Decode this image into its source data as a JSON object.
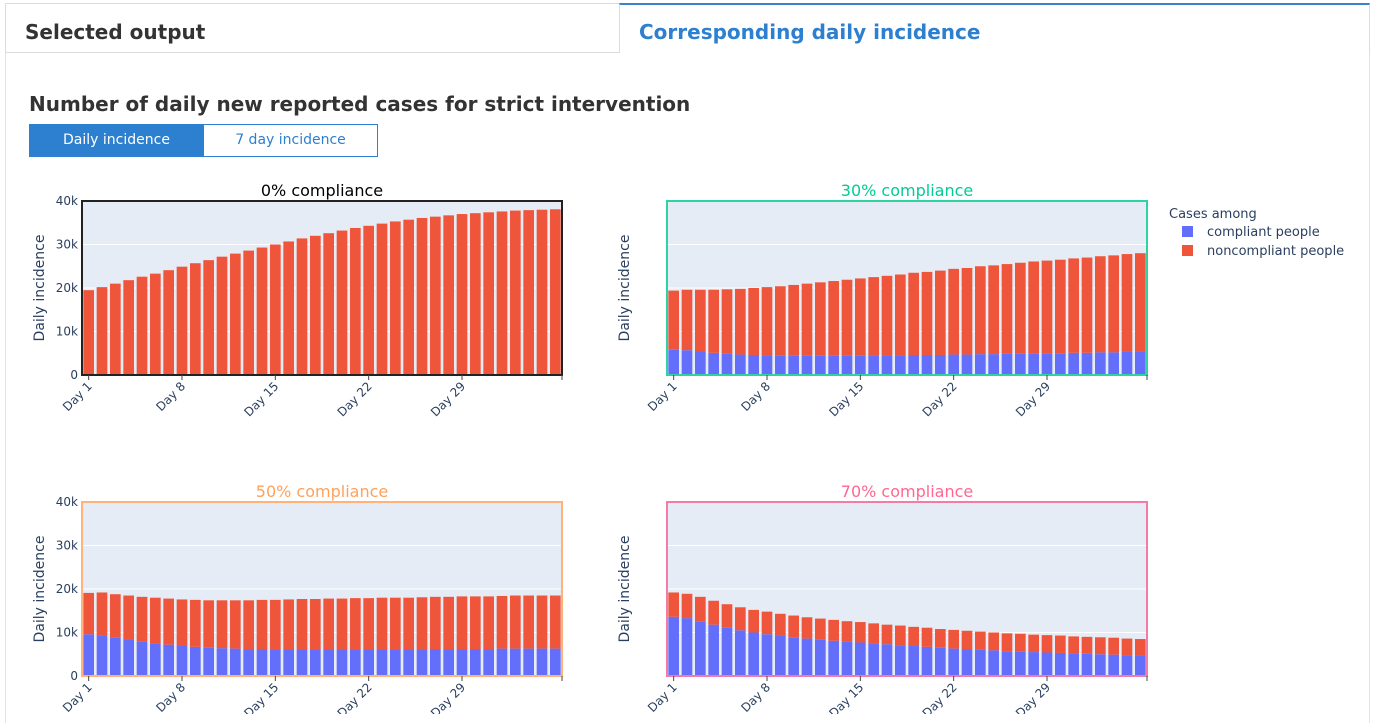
{
  "tabs": {
    "selected_output": "Selected output",
    "daily_incidence": "Corresponding daily incidence"
  },
  "heading": "Number of daily new reported cases for strict intervention",
  "toggle": {
    "daily": "Daily incidence",
    "seven_day": "7 day incidence"
  },
  "legend": {
    "title": "Cases among",
    "compliant": "compliant people",
    "noncompliant": "noncompliant people",
    "compliant_color": "#636efa",
    "noncompliant_color": "#ef553b"
  },
  "chart_data": [
    {
      "type": "bar",
      "stacked": true,
      "title": "0% compliance",
      "title_color": "#000000",
      "frame_color": "#222222",
      "ylabel": "Daily incidence",
      "ylim": [
        0,
        40000
      ],
      "yticks": [
        "0",
        "10k",
        "20k",
        "30k",
        "40k"
      ],
      "xticks": [
        "Day 1",
        "Day 8",
        "Day 15",
        "Day 22",
        "Day 29"
      ],
      "series": [
        {
          "name": "compliant people",
          "values": [
            0,
            0,
            0,
            0,
            0,
            0,
            0,
            0,
            0,
            0,
            0,
            0,
            0,
            0,
            0,
            0,
            0,
            0,
            0,
            0,
            0,
            0,
            0,
            0,
            0,
            0,
            0,
            0,
            0,
            0,
            0,
            0,
            0,
            0,
            0,
            0
          ]
        },
        {
          "name": "noncompliant people",
          "values": [
            19500,
            20200,
            21000,
            21800,
            22600,
            23300,
            24100,
            24900,
            25700,
            26400,
            27200,
            27900,
            28600,
            29300,
            30000,
            30700,
            31400,
            32000,
            32600,
            33200,
            33800,
            34300,
            34800,
            35300,
            35700,
            36100,
            36400,
            36700,
            37000,
            37200,
            37400,
            37600,
            37800,
            37900,
            38000,
            38100
          ]
        }
      ]
    },
    {
      "type": "bar",
      "stacked": true,
      "title": "30% compliance",
      "title_color": "#00cc96",
      "frame_color": "#2ed3a4",
      "ylabel": "Daily incidence",
      "ylim": [
        0,
        40000
      ],
      "yticks": [],
      "xticks": [
        "Day 1",
        "Day 8",
        "Day 15",
        "Day 22",
        "Day 29"
      ],
      "series": [
        {
          "name": "compliant people",
          "values": [
            5800,
            5700,
            5400,
            5100,
            4900,
            4700,
            4600,
            4500,
            4400,
            4400,
            4400,
            4400,
            4400,
            4400,
            4400,
            4500,
            4500,
            4500,
            4600,
            4600,
            4600,
            4700,
            4700,
            4800,
            4800,
            4900,
            4900,
            5000,
            5000,
            5000,
            5100,
            5100,
            5200,
            5200,
            5300,
            5300
          ]
        },
        {
          "name": "noncompliant people",
          "values": [
            13600,
            13900,
            14200,
            14500,
            14800,
            15100,
            15400,
            15700,
            16000,
            16300,
            16600,
            16900,
            17200,
            17500,
            17800,
            18000,
            18300,
            18600,
            18900,
            19100,
            19400,
            19700,
            19900,
            20200,
            20400,
            20600,
            20900,
            21100,
            21300,
            21500,
            21700,
            21900,
            22100,
            22300,
            22500,
            22700
          ]
        }
      ]
    },
    {
      "type": "bar",
      "stacked": true,
      "title": "50% compliance",
      "title_color": "#ffa15a",
      "frame_color": "#ffb27a",
      "ylabel": "Daily incidence",
      "ylim": [
        0,
        40000
      ],
      "yticks": [
        "0",
        "10k",
        "20k",
        "30k",
        "40k"
      ],
      "xticks": [
        "Day 1",
        "Day 8",
        "Day 15",
        "Day 22",
        "Day 29"
      ],
      "series": [
        {
          "name": "compliant people",
          "values": [
            9600,
            9400,
            8900,
            8400,
            7900,
            7500,
            7200,
            6900,
            6700,
            6500,
            6400,
            6300,
            6200,
            6200,
            6100,
            6100,
            6100,
            6100,
            6100,
            6100,
            6100,
            6100,
            6100,
            6100,
            6100,
            6100,
            6200,
            6200,
            6200,
            6200,
            6200,
            6300,
            6300,
            6300,
            6300,
            6300
          ]
        },
        {
          "name": "noncompliant people",
          "values": [
            9500,
            9800,
            9900,
            10100,
            10300,
            10500,
            10600,
            10700,
            10800,
            10900,
            11000,
            11100,
            11200,
            11300,
            11400,
            11500,
            11600,
            11600,
            11700,
            11700,
            11800,
            11800,
            11900,
            11900,
            11900,
            12000,
            12000,
            12000,
            12100,
            12100,
            12100,
            12100,
            12200,
            12200,
            12200,
            12200
          ]
        }
      ]
    },
    {
      "type": "bar",
      "stacked": true,
      "title": "70% compliance",
      "title_color": "#ff6692",
      "frame_color": "#f47ba6",
      "ylabel": "Daily incidence",
      "ylim": [
        0,
        40000
      ],
      "yticks": [],
      "xticks": [
        "Day 1",
        "Day 8",
        "Day 15",
        "Day 22",
        "Day 29"
      ],
      "series": [
        {
          "name": "compliant people",
          "values": [
            13600,
            13300,
            12600,
            11800,
            11100,
            10500,
            10000,
            9600,
            9200,
            8900,
            8600,
            8300,
            8100,
            7900,
            7700,
            7500,
            7300,
            7100,
            6900,
            6700,
            6500,
            6300,
            6200,
            6000,
            5900,
            5700,
            5600,
            5500,
            5400,
            5300,
            5200,
            5100,
            5000,
            4900,
            4800,
            4700
          ]
        },
        {
          "name": "noncompliant people",
          "values": [
            5600,
            5600,
            5600,
            5500,
            5400,
            5300,
            5200,
            5200,
            5100,
            5000,
            4900,
            4900,
            4800,
            4700,
            4700,
            4600,
            4500,
            4500,
            4400,
            4400,
            4300,
            4300,
            4200,
            4200,
            4100,
            4100,
            4100,
            4000,
            4000,
            4000,
            3900,
            3900,
            3900,
            3900,
            3800,
            3800
          ]
        }
      ]
    }
  ]
}
